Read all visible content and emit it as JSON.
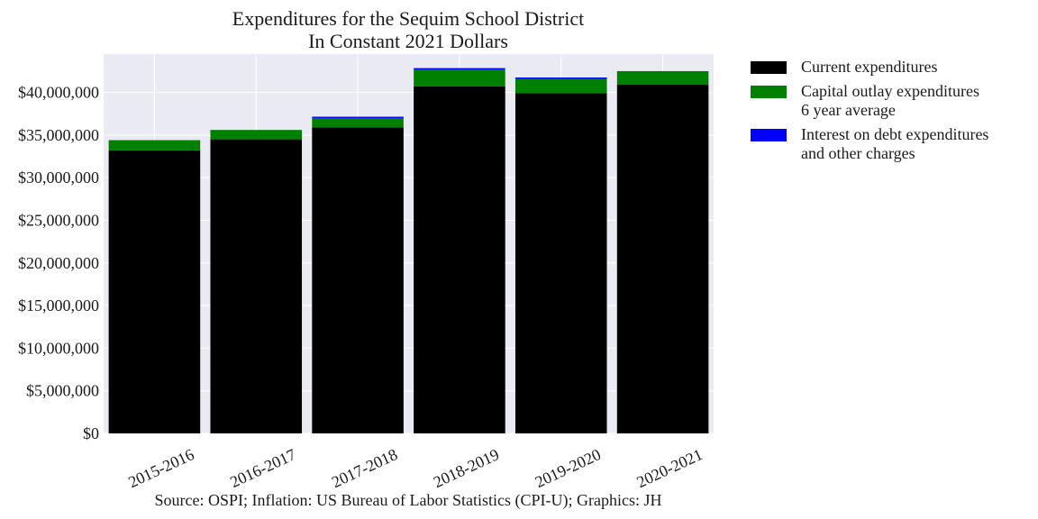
{
  "chart_data": {
    "type": "bar",
    "stacked": true,
    "title": "Expenditures for the Sequim School District",
    "subtitle": "In Constant 2021 Dollars",
    "xlabel": "",
    "ylabel": "",
    "categories": [
      "2015-2016",
      "2016-2017",
      "2017-2018",
      "2018-2019",
      "2019-2020",
      "2020-2021"
    ],
    "series": [
      {
        "name": "Current expenditures",
        "color": "#000000",
        "values": [
          33200000,
          34500000,
          35900000,
          40700000,
          39900000,
          40900000
        ]
      },
      {
        "name": "Capital outlay expenditures 6 year average",
        "color": "#008000",
        "values": [
          1200000,
          1100000,
          1100000,
          2000000,
          1700000,
          1600000
        ]
      },
      {
        "name": "Interest on debt expenditures and other charges",
        "color": "#0000ff",
        "values": [
          0,
          0,
          150000,
          150000,
          150000,
          0
        ]
      }
    ],
    "ylim": [
      0,
      44500000
    ],
    "yticks": [
      0,
      5000000,
      10000000,
      15000000,
      20000000,
      25000000,
      30000000,
      35000000,
      40000000
    ],
    "ytick_labels": [
      "$0",
      "$5,000,000",
      "$10,000,000",
      "$15,000,000",
      "$20,000,000",
      "$25,000,000",
      "$30,000,000",
      "$35,000,000",
      "$40,000,000"
    ],
    "grid": true,
    "legend_position": "outside-right",
    "legend_entries": [
      {
        "lines": [
          "Current expenditures"
        ],
        "color": "#000000"
      },
      {
        "lines": [
          "Capital outlay expenditures",
          "6 year average"
        ],
        "color": "#008000"
      },
      {
        "lines": [
          "Interest on debt expenditures",
          "and other charges"
        ],
        "color": "#0000ff"
      }
    ],
    "source": "Source: OSPI; Inflation: US Bureau of Labor Statistics (CPI-U); Graphics: JH",
    "background_color": "#eaeaf2",
    "grid_color": "#ffffff"
  }
}
